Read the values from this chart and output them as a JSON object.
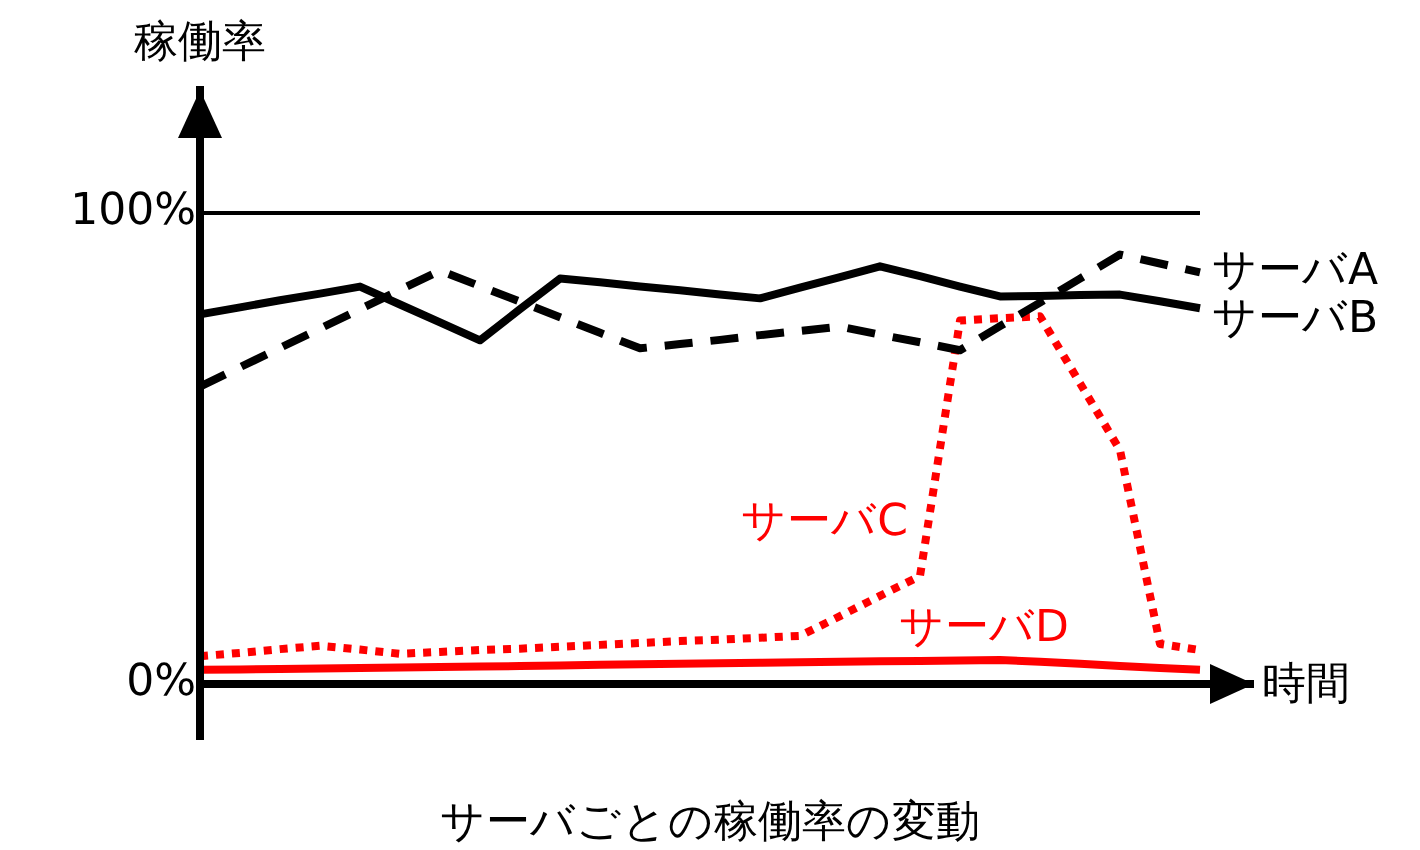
{
  "chart_data": {
    "type": "line",
    "title": "サーバごとの稼働率の変動",
    "xlabel": "時間",
    "ylabel": "稼働率",
    "categories": [
      null,
      null,
      null,
      null,
      null,
      null,
      null,
      null,
      null,
      null,
      null,
      null,
      null,
      null,
      null,
      null,
      null,
      null,
      null,
      null,
      null,
      null,
      null,
      null,
      null,
      null
    ],
    "ylim": [
      0,
      126
    ],
    "yticks": [
      {
        "value": 0,
        "label": "0%"
      },
      {
        "value": 100,
        "label": "100%"
      }
    ],
    "tick_labels": "y",
    "grid": "y",
    "legend": false,
    "marker": "none",
    "series": [
      {
        "name": "サーバA",
        "color": "#000000",
        "line_style": "dashed",
        "values": [
          63.1,
          67.2,
          71.3,
          75.4,
          79.5,
          83.6,
          87.7,
          84.4,
          81.1,
          77.8,
          74.5,
          71.2,
          72.1,
          73.0,
          74.0,
          74.9,
          75.8,
          74.1,
          72.5,
          70.8,
          75.9,
          80.9,
          86.0,
          91.1,
          89.2,
          87.3
        ]
      },
      {
        "name": "サーバB",
        "color": "#000000",
        "line_style": "solid",
        "values": [
          78.4,
          79.9,
          81.4,
          82.8,
          84.3,
          80.5,
          76.7,
          72.9,
          79.5,
          86.0,
          85.2,
          84.3,
          83.5,
          82.6,
          81.8,
          84.1,
          86.3,
          88.6,
          86.5,
          84.3,
          82.2,
          82.3,
          82.5,
          82.6,
          81.2,
          79.7
        ]
      },
      {
        "name": "サーバC",
        "color": "#ff0000",
        "line_style": "dotted",
        "values": [
          5.9,
          6.6,
          7.4,
          8.1,
          7.3,
          6.4,
          6.8,
          7.2,
          7.5,
          7.9,
          8.3,
          8.7,
          9.1,
          9.4,
          9.8,
          10.2,
          14.4,
          18.7,
          22.9,
          77.1,
          77.6,
          78.0,
          63.8,
          49.6,
          8.5,
          7.2
        ]
      },
      {
        "name": "サーバD",
        "color": "#ff0000",
        "line_style": "solid",
        "values": [
          3.0,
          3.1,
          3.2,
          3.3,
          3.4,
          3.5,
          3.6,
          3.7,
          3.8,
          3.9,
          4.1,
          4.2,
          4.3,
          4.4,
          4.5,
          4.6,
          4.7,
          4.8,
          4.9,
          5.0,
          5.1,
          4.7,
          4.3,
          3.8,
          3.4,
          3.0
        ]
      }
    ]
  }
}
